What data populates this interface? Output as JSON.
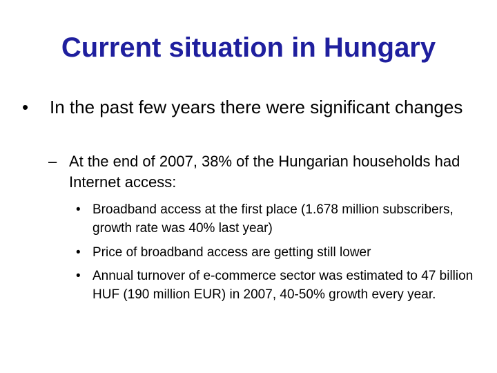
{
  "slide": {
    "title": "Current situation in Hungary",
    "bullets": [
      {
        "marker": "•",
        "text": "In the past few years there were significant changes",
        "sub": [
          {
            "marker": "–",
            "text": "At the end of 2007, 38% of the Hungarian households had Internet access:",
            "sub": [
              {
                "marker": "•",
                "text": "Broadband access at the first place (1.678 million subscribers, growth rate was 40% last year)"
              },
              {
                "marker": "•",
                "text": "Price of broadband access are getting still lower"
              },
              {
                "marker": "•",
                "text": "Annual turnover of e-commerce sector was estimated to 47 billion HUF (190 million EUR) in 2007, 40-50% growth every year."
              }
            ]
          }
        ]
      }
    ]
  }
}
